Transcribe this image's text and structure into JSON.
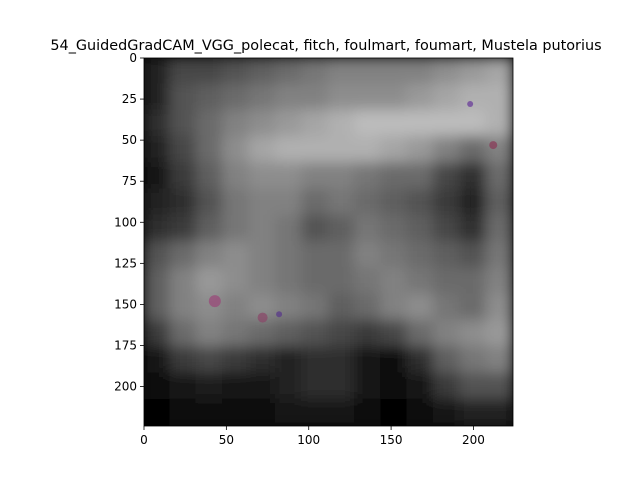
{
  "chart_data": {
    "type": "heatmap",
    "title": "54_GuidedGradCAM_VGG_polecat, fitch, foulmart, foumart, Mustela putorius",
    "xlabel": "",
    "ylabel": "",
    "xlim": [
      0,
      224
    ],
    "ylim": [
      224,
      0
    ],
    "x_ticks": [
      0,
      50,
      100,
      150,
      200
    ],
    "y_ticks": [
      0,
      25,
      50,
      75,
      100,
      125,
      150,
      175,
      200
    ],
    "grid": false,
    "colormap": "grayscale overlay",
    "grid_cols": 14,
    "grid_rows": 14,
    "intensity": [
      [
        0.15,
        0.3,
        0.3,
        0.35,
        0.4,
        0.45,
        0.5,
        0.55,
        0.55,
        0.55,
        0.55,
        0.6,
        0.65,
        0.7
      ],
      [
        0.15,
        0.35,
        0.4,
        0.45,
        0.5,
        0.55,
        0.55,
        0.6,
        0.6,
        0.6,
        0.65,
        0.7,
        0.75,
        0.75
      ],
      [
        0.2,
        0.35,
        0.45,
        0.55,
        0.6,
        0.65,
        0.7,
        0.75,
        0.8,
        0.8,
        0.8,
        0.8,
        0.8,
        0.75
      ],
      [
        0.15,
        0.3,
        0.45,
        0.6,
        0.7,
        0.75,
        0.75,
        0.75,
        0.75,
        0.7,
        0.65,
        0.55,
        0.45,
        0.55
      ],
      [
        0.1,
        0.25,
        0.4,
        0.55,
        0.6,
        0.6,
        0.55,
        0.55,
        0.5,
        0.45,
        0.45,
        0.3,
        0.2,
        0.45
      ],
      [
        0.15,
        0.2,
        0.35,
        0.5,
        0.55,
        0.55,
        0.45,
        0.5,
        0.45,
        0.4,
        0.35,
        0.25,
        0.15,
        0.4
      ],
      [
        0.2,
        0.25,
        0.4,
        0.5,
        0.55,
        0.5,
        0.35,
        0.4,
        0.5,
        0.45,
        0.4,
        0.3,
        0.2,
        0.45
      ],
      [
        0.35,
        0.45,
        0.55,
        0.6,
        0.55,
        0.5,
        0.45,
        0.45,
        0.55,
        0.5,
        0.45,
        0.4,
        0.35,
        0.5
      ],
      [
        0.4,
        0.55,
        0.65,
        0.6,
        0.55,
        0.5,
        0.45,
        0.45,
        0.5,
        0.55,
        0.5,
        0.45,
        0.45,
        0.55
      ],
      [
        0.4,
        0.55,
        0.6,
        0.55,
        0.6,
        0.55,
        0.5,
        0.4,
        0.45,
        0.55,
        0.6,
        0.5,
        0.45,
        0.6
      ],
      [
        0.25,
        0.45,
        0.55,
        0.5,
        0.45,
        0.4,
        0.35,
        0.3,
        0.25,
        0.3,
        0.45,
        0.55,
        0.6,
        0.65
      ],
      [
        0.1,
        0.25,
        0.3,
        0.25,
        0.2,
        0.15,
        0.2,
        0.2,
        0.1,
        0.05,
        0.2,
        0.4,
        0.5,
        0.55
      ],
      [
        0.05,
        0.1,
        0.12,
        0.1,
        0.1,
        0.15,
        0.2,
        0.2,
        0.1,
        0.05,
        0.1,
        0.25,
        0.35,
        0.35
      ],
      [
        0.02,
        0.05,
        0.05,
        0.05,
        0.05,
        0.08,
        0.1,
        0.1,
        0.05,
        0.02,
        0.05,
        0.1,
        0.15,
        0.15
      ]
    ],
    "highlights": [
      {
        "x": 198,
        "y": 28,
        "color": "#6a3c9a",
        "size": 3
      },
      {
        "x": 212,
        "y": 53,
        "color": "#8a3c5a",
        "size": 4
      },
      {
        "x": 43,
        "y": 148,
        "color": "#9a4a7a",
        "size": 6
      },
      {
        "x": 72,
        "y": 158,
        "color": "#8a4a6a",
        "size": 5
      },
      {
        "x": 82,
        "y": 156,
        "color": "#5a3a8a",
        "size": 3
      }
    ]
  }
}
